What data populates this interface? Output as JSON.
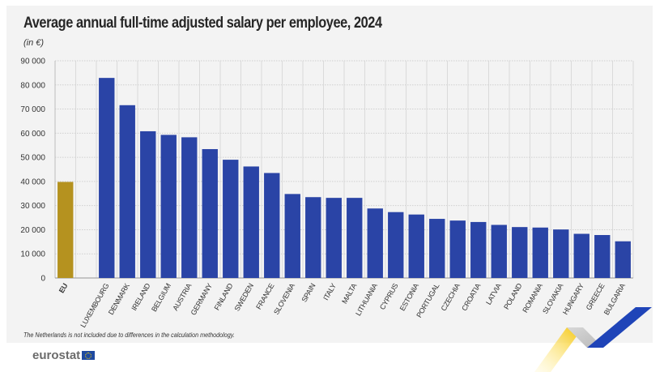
{
  "header": {
    "title": "Average annual full-time adjusted salary per employee, 2024",
    "subtitle": "(in €)"
  },
  "footer": {
    "footnote": "The Netherlands is not included due to differences in the calculation methodology.",
    "logo_text": "eurostat"
  },
  "colors": {
    "eu_bar": "#b5921f",
    "country_bar": "#2a44a6",
    "background": "#f3f3f3"
  },
  "chart_data": {
    "type": "bar",
    "title": "Average annual full-time adjusted salary per employee, 2024",
    "subtitle": "(in €)",
    "xlabel": "",
    "ylabel": "",
    "ylim": [
      0,
      90000
    ],
    "yticks": [
      0,
      10000,
      20000,
      30000,
      40000,
      50000,
      60000,
      70000,
      80000,
      90000
    ],
    "ytick_labels": [
      "0",
      "10 000",
      "20 000",
      "30 000",
      "40 000",
      "50 000",
      "60 000",
      "70 000",
      "80 000",
      "90 000"
    ],
    "grid": true,
    "legend": "none",
    "categories": [
      "EU",
      "",
      "LUXEMBOURG",
      "DENMARK",
      "IRELAND",
      "BELGIUM",
      "AUSTRIA",
      "GERMANY",
      "FINLAND",
      "SWEDEN",
      "FRANCE",
      "SLOVENIA",
      "SPAIN",
      "ITALY",
      "MALTA",
      "LITHUANIA",
      "CYPRUS",
      "ESTONIA",
      "PORTUGAL",
      "CZECHIA",
      "CROATIA",
      "LATVIA",
      "POLAND",
      "ROMANIA",
      "SLOVAKIA",
      "HUNGARY",
      "GREECE",
      "BULGARIA"
    ],
    "values": [
      39800,
      null,
      82900,
      71600,
      60800,
      59300,
      58300,
      53400,
      49000,
      46200,
      43500,
      34800,
      33500,
      33200,
      33200,
      28800,
      27300,
      26300,
      24500,
      23800,
      23200,
      22000,
      21100,
      20900,
      20100,
      18300,
      17800,
      15200
    ],
    "highlight": [
      "EU"
    ]
  }
}
